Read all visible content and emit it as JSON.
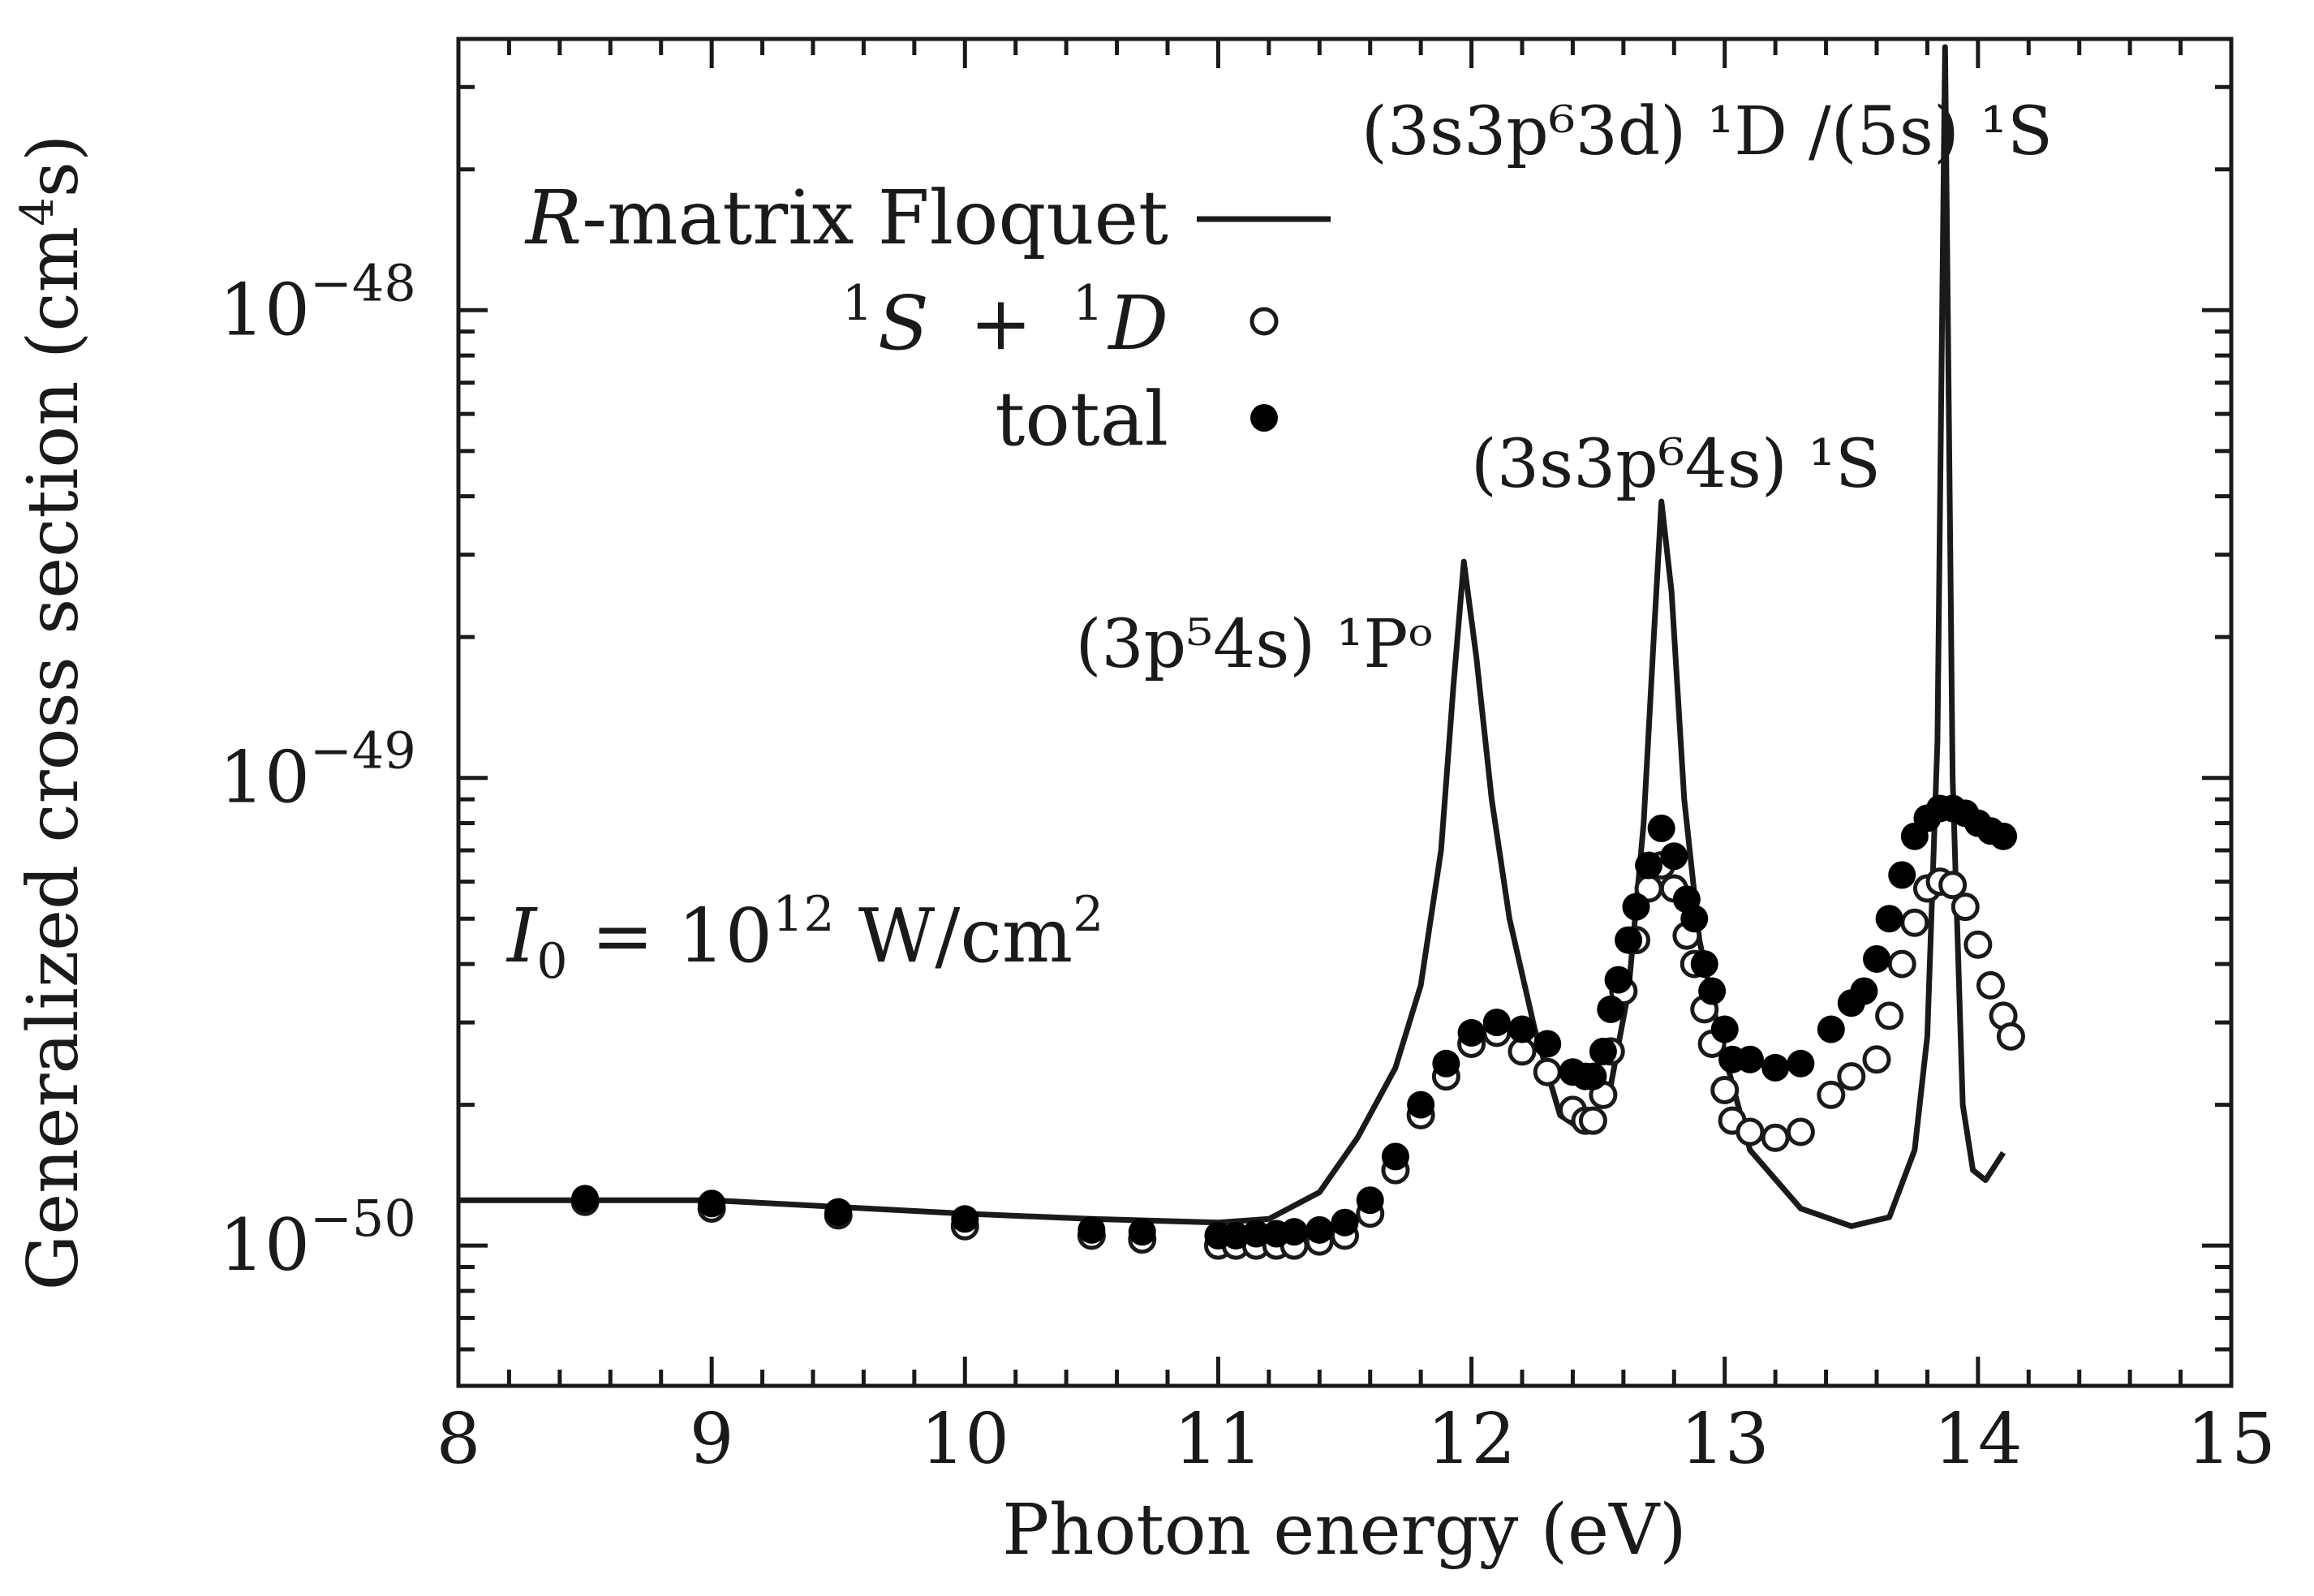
{
  "chart_data": {
    "type": "scatter",
    "xlabel": "Photon energy (eV)",
    "ylabel": "Generalized cross section (cm",
    "ylabel_unit_exp": "4",
    "ylabel_tail": "s)",
    "xlim": [
      8,
      15
    ],
    "ylim_log10": [
      -50.3,
      -47.42
    ],
    "x_ticks": [
      "8",
      "9",
      "10",
      "11",
      "12",
      "13",
      "14",
      "15"
    ],
    "y_ticks": [
      {
        "base": "10",
        "exp": "−48",
        "log": -48
      },
      {
        "base": "10",
        "exp": "−49",
        "log": -49
      },
      {
        "base": "10",
        "exp": "−50",
        "log": -50
      }
    ],
    "intensity_label": {
      "symbol": "I",
      "sub": "0",
      "text": " = 10",
      "exp": "12",
      "unit": " W/cm",
      "unit_exp": "2"
    },
    "legend": [
      {
        "label_italic": "R",
        "label": "-matrix Floquet",
        "marker": "line"
      },
      {
        "label_sup1": "1",
        "label_s": "S",
        "label_plus": "+",
        "label_sup2": "1",
        "label_d": "D",
        "marker": "open-circle"
      },
      {
        "label": "total",
        "marker": "filled-circle"
      }
    ],
    "annotations": [
      {
        "id": "p1",
        "x": 11.97,
        "text": "(3p⁵4s) ¹Pᵒ"
      },
      {
        "id": "s1",
        "x": 12.75,
        "text": "(3s3p⁶4s) ¹S"
      },
      {
        "id": "d1",
        "x": 13.87,
        "text": "(3s3p⁶3d) ¹D /(5s) ¹S"
      }
    ],
    "series": [
      {
        "name": "R-matrix Floquet",
        "style": "line",
        "color": "#1a1a1a",
        "points": [
          [
            8.0,
            1.25e-50
          ],
          [
            9.0,
            1.25e-50
          ],
          [
            10.0,
            1.17e-50
          ],
          [
            10.5,
            1.14e-50
          ],
          [
            11.0,
            1.12e-50
          ],
          [
            11.2,
            1.14e-50
          ],
          [
            11.4,
            1.3e-50
          ],
          [
            11.55,
            1.7e-50
          ],
          [
            11.7,
            2.4e-50
          ],
          [
            11.8,
            3.6e-50
          ],
          [
            11.88,
            7e-50
          ],
          [
            11.93,
            1.6e-49
          ],
          [
            11.97,
            2.9e-49
          ],
          [
            12.02,
            1.8e-49
          ],
          [
            12.08,
            9e-50
          ],
          [
            12.15,
            5e-50
          ],
          [
            12.25,
            2.9e-50
          ],
          [
            12.35,
            1.9e-50
          ],
          [
            12.45,
            1.75e-50
          ],
          [
            12.55,
            2.2e-50
          ],
          [
            12.62,
            3.5e-50
          ],
          [
            12.68,
            8e-50
          ],
          [
            12.72,
            2e-49
          ],
          [
            12.75,
            3.9e-49
          ],
          [
            12.79,
            2.5e-49
          ],
          [
            12.84,
            9e-50
          ],
          [
            12.9,
            4.5e-50
          ],
          [
            12.98,
            2.8e-50
          ],
          [
            13.1,
            1.6e-50
          ],
          [
            13.3,
            1.2e-50
          ],
          [
            13.5,
            1.1e-50
          ],
          [
            13.65,
            1.15e-50
          ],
          [
            13.75,
            1.6e-50
          ],
          [
            13.8,
            2.8e-50
          ],
          [
            13.84,
            1.2e-49
          ],
          [
            13.87,
            4e-48
          ],
          [
            13.9,
            1e-49
          ],
          [
            13.94,
            2e-50
          ],
          [
            13.98,
            1.45e-50
          ],
          [
            14.03,
            1.38e-50
          ],
          [
            14.1,
            1.58e-50
          ]
        ]
      },
      {
        "name": "1S + 1D",
        "style": "open-circle",
        "color": "#1a1a1a",
        "points": [
          [
            8.5,
            1.24e-50
          ],
          [
            9.0,
            1.2e-50
          ],
          [
            9.5,
            1.16e-50
          ],
          [
            10.0,
            1.1e-50
          ],
          [
            10.5,
            1.05e-50
          ],
          [
            10.7,
            1.03e-50
          ],
          [
            11.0,
            1e-50
          ],
          [
            11.07,
            1e-50
          ],
          [
            11.15,
            1e-50
          ],
          [
            11.23,
            1e-50
          ],
          [
            11.3,
            1e-50
          ],
          [
            11.4,
            1.02e-50
          ],
          [
            11.5,
            1.05e-50
          ],
          [
            11.6,
            1.17e-50
          ],
          [
            11.7,
            1.45e-50
          ],
          [
            11.8,
            1.9e-50
          ],
          [
            11.9,
            2.3e-50
          ],
          [
            12.0,
            2.7e-50
          ],
          [
            12.1,
            2.85e-50
          ],
          [
            12.2,
            2.6e-50
          ],
          [
            12.3,
            2.35e-50
          ],
          [
            12.4,
            1.95e-50
          ],
          [
            12.45,
            1.85e-50
          ],
          [
            12.48,
            1.85e-50
          ],
          [
            12.52,
            2.1e-50
          ],
          [
            12.55,
            2.6e-50
          ],
          [
            12.6,
            3.5e-50
          ],
          [
            12.65,
            4.5e-50
          ],
          [
            12.7,
            5.8e-50
          ],
          [
            12.75,
            6.5e-50
          ],
          [
            12.8,
            5.8e-50
          ],
          [
            12.85,
            4.6e-50
          ],
          [
            12.88,
            4e-50
          ],
          [
            12.92,
            3.2e-50
          ],
          [
            12.95,
            2.7e-50
          ],
          [
            13.0,
            2.15e-50
          ],
          [
            13.03,
            1.85e-50
          ],
          [
            13.1,
            1.75e-50
          ],
          [
            13.2,
            1.7e-50
          ],
          [
            13.3,
            1.75e-50
          ],
          [
            13.42,
            2.1e-50
          ],
          [
            13.5,
            2.3e-50
          ],
          [
            13.6,
            2.5e-50
          ],
          [
            13.65,
            3.1e-50
          ],
          [
            13.7,
            4e-50
          ],
          [
            13.75,
            4.9e-50
          ],
          [
            13.8,
            5.8e-50
          ],
          [
            13.85,
            6e-50
          ],
          [
            13.9,
            5.9e-50
          ],
          [
            13.95,
            5.3e-50
          ],
          [
            14.0,
            4.4e-50
          ],
          [
            14.05,
            3.6e-50
          ],
          [
            14.1,
            3.1e-50
          ],
          [
            14.13,
            2.8e-50
          ]
        ]
      },
      {
        "name": "total",
        "style": "filled-circle",
        "color": "#000000",
        "points": [
          [
            8.5,
            1.26e-50
          ],
          [
            9.0,
            1.23e-50
          ],
          [
            9.5,
            1.18e-50
          ],
          [
            10.0,
            1.14e-50
          ],
          [
            10.5,
            1.08e-50
          ],
          [
            10.7,
            1.07e-50
          ],
          [
            11.0,
            1.05e-50
          ],
          [
            11.07,
            1.05e-50
          ],
          [
            11.15,
            1.06e-50
          ],
          [
            11.23,
            1.06e-50
          ],
          [
            11.3,
            1.07e-50
          ],
          [
            11.4,
            1.08e-50
          ],
          [
            11.5,
            1.12e-50
          ],
          [
            11.6,
            1.25e-50
          ],
          [
            11.7,
            1.55e-50
          ],
          [
            11.8,
            2e-50
          ],
          [
            11.9,
            2.45e-50
          ],
          [
            12.0,
            2.85e-50
          ],
          [
            12.1,
            3e-50
          ],
          [
            12.2,
            2.9e-50
          ],
          [
            12.3,
            2.7e-50
          ],
          [
            12.4,
            2.35e-50
          ],
          [
            12.45,
            2.3e-50
          ],
          [
            12.48,
            2.3e-50
          ],
          [
            12.52,
            2.6e-50
          ],
          [
            12.55,
            3.2e-50
          ],
          [
            12.58,
            3.7e-50
          ],
          [
            12.62,
            4.5e-50
          ],
          [
            12.65,
            5.3e-50
          ],
          [
            12.7,
            6.5e-50
          ],
          [
            12.75,
            7.8e-50
          ],
          [
            12.8,
            6.8e-50
          ],
          [
            12.85,
            5.5e-50
          ],
          [
            12.88,
            5e-50
          ],
          [
            12.92,
            4e-50
          ],
          [
            12.95,
            3.5e-50
          ],
          [
            13.0,
            2.9e-50
          ],
          [
            13.03,
            2.5e-50
          ],
          [
            13.1,
            2.5e-50
          ],
          [
            13.2,
            2.4e-50
          ],
          [
            13.3,
            2.45e-50
          ],
          [
            13.42,
            2.9e-50
          ],
          [
            13.5,
            3.3e-50
          ],
          [
            13.55,
            3.5e-50
          ],
          [
            13.6,
            4.1e-50
          ],
          [
            13.65,
            5e-50
          ],
          [
            13.7,
            6.2e-50
          ],
          [
            13.75,
            7.5e-50
          ],
          [
            13.8,
            8.2e-50
          ],
          [
            13.85,
            8.6e-50
          ],
          [
            13.9,
            8.6e-50
          ],
          [
            13.95,
            8.4e-50
          ],
          [
            14.0,
            8e-50
          ],
          [
            14.05,
            7.7e-50
          ],
          [
            14.1,
            7.5e-50
          ]
        ]
      }
    ]
  }
}
